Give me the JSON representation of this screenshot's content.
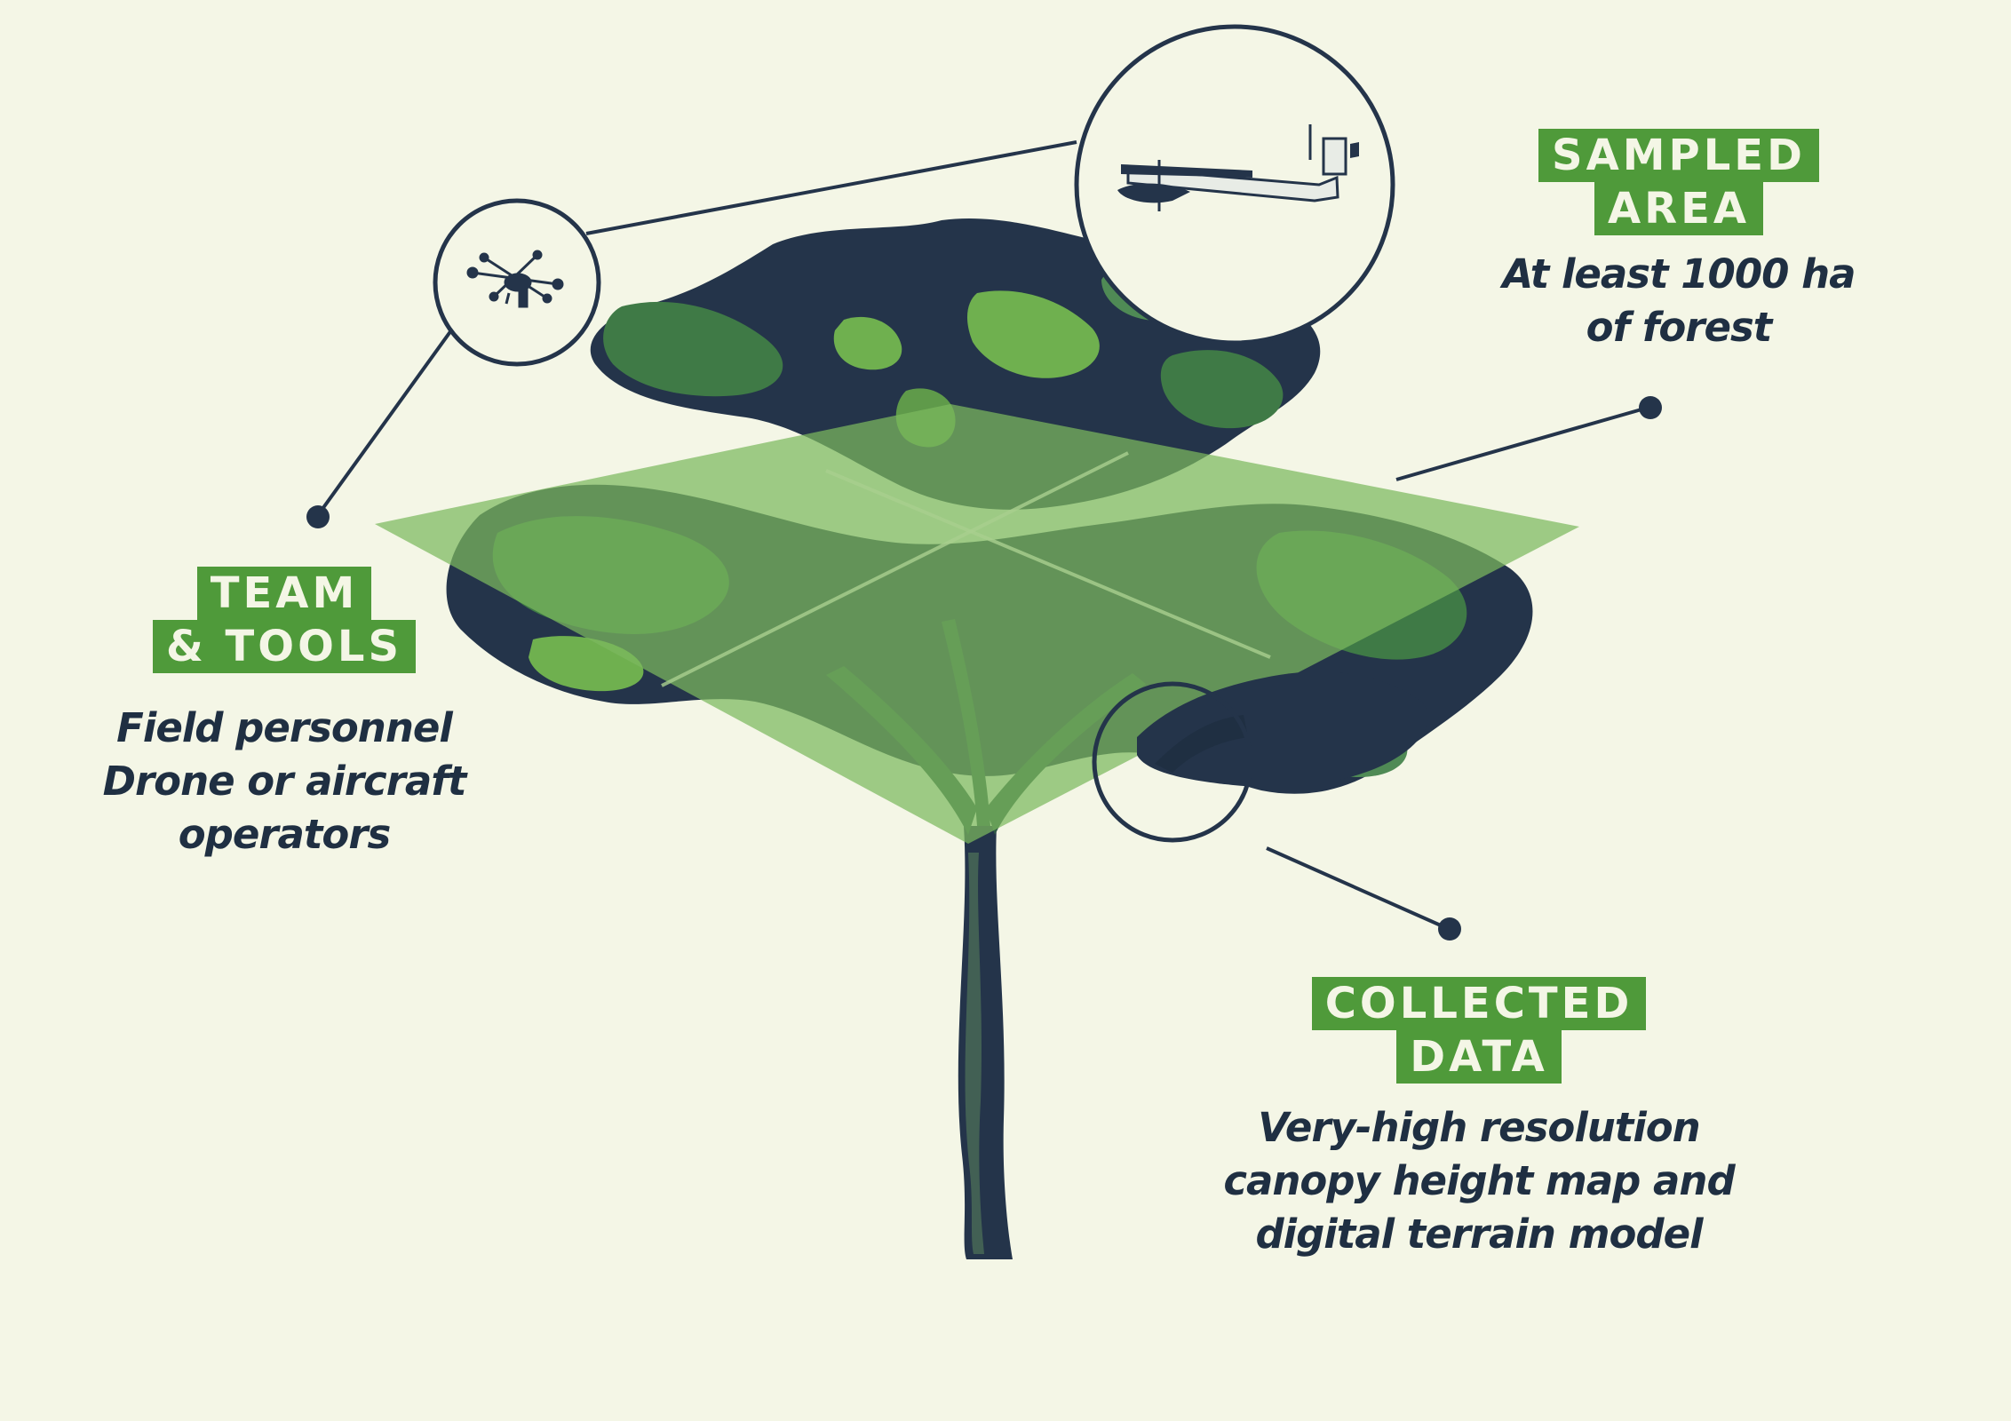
{
  "labels": {
    "sampled_area": {
      "title_line1": "SAMPLED",
      "title_line2": "AREA",
      "desc_line1": "At least 1000 ha",
      "desc_line2": "of forest"
    },
    "team_tools": {
      "title_line1": "TEAM",
      "title_line2": "& TOOLS",
      "desc_line1": "Field personnel",
      "desc_line2": "Drone or aircraft",
      "desc_line3": "operators"
    },
    "collected_data": {
      "title_line1": "COLLECTED",
      "title_line2": "DATA",
      "desc_line1": "Very-high resolution",
      "desc_line2": "canopy height map and",
      "desc_line3": "digital terrain model"
    }
  },
  "icons": {
    "drone": "drone-icon",
    "aircraft": "aircraft-icon",
    "magnifier": "magnifier-circle"
  },
  "colors": {
    "background": "#f4f6e6",
    "tag_green": "#4f9a3a",
    "text_navy": "#1f2f42",
    "canopy_dark": "#24344a",
    "canopy_mid": "#3f7a46",
    "canopy_light": "#6fb04f",
    "plane_green": "#7cb85e"
  }
}
